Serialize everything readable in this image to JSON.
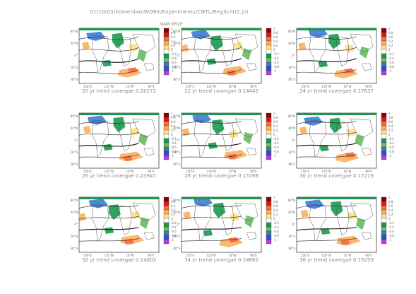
{
  "header": {
    "path": "01/10/03/home/dan/WORK/Experiments/CNTL/Reg3cntl2.jnl"
  },
  "title": "MAM MSLP",
  "colorbar": {
    "labels": [
      "1",
      "0.8",
      "0.6",
      "0.4",
      "0.2",
      "0",
      "-0.2",
      "-0.4",
      "-0.6",
      "-0.8",
      "-1"
    ],
    "colors": [
      "#8b0000",
      "#d7191c",
      "#f46d43",
      "#fdae61",
      "#fee08b",
      "#ffffff",
      "#1a9850",
      "#66bd63",
      "#4575b4",
      "#3050c0",
      "#b040e0"
    ]
  },
  "map_axes": {
    "lat_labels": [
      "80°N",
      "40°N",
      "0°",
      "40°S",
      "80°S"
    ],
    "lon_labels": [
      "150°E",
      "110°W",
      "10°W",
      "90°E"
    ]
  },
  "chart_data": [
    {
      "type": "heatmap",
      "caption": "20 yr trend covergae 0.20272",
      "trend_years": 20,
      "coverage": 0.20272
    },
    {
      "type": "heatmap",
      "caption": "22 yr trend covergae 0.14445",
      "trend_years": 22,
      "coverage": 0.14445
    },
    {
      "type": "heatmap",
      "caption": "24 yr trend covergae 0.17637",
      "trend_years": 24,
      "coverage": 0.17637
    },
    {
      "type": "heatmap",
      "caption": "26 yr trend covergae 0.23947",
      "trend_years": 26,
      "coverage": 0.23947
    },
    {
      "type": "heatmap",
      "caption": "28 yr trend covergae 0.15766",
      "trend_years": 28,
      "coverage": 0.15766
    },
    {
      "type": "heatmap",
      "caption": "30 yr trend covergae 0.17219",
      "trend_years": 30,
      "coverage": 0.17219
    },
    {
      "type": "heatmap",
      "caption": "32 yr trend covergae 0.14003",
      "trend_years": 32,
      "coverage": 0.14003
    },
    {
      "type": "heatmap",
      "caption": "34 yr trend covergae 0.14862",
      "trend_years": 34,
      "coverage": 0.14862
    },
    {
      "type": "heatmap",
      "caption": "36 yr trend covergae 0.15259",
      "trend_years": 36,
      "coverage": 0.15259
    }
  ]
}
